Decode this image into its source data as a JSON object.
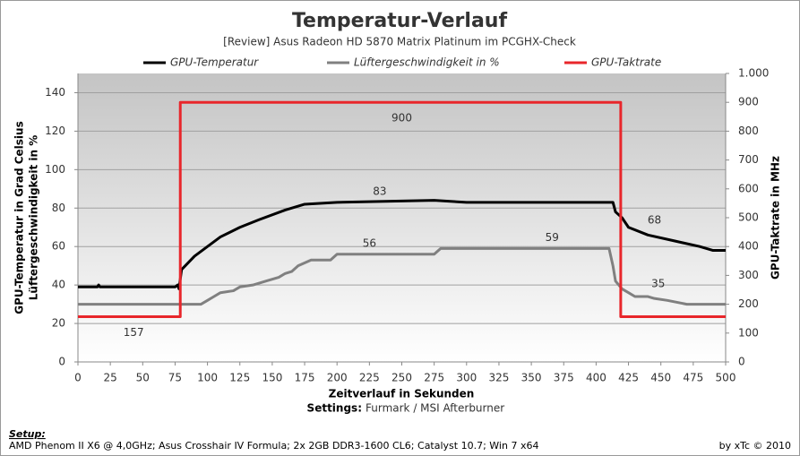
{
  "chart_data": {
    "type": "line",
    "title": "Temperatur-Verlauf",
    "subtitle": "[Review] Asus Radeon HD 5870 Matrix Platinum im PCGHX-Check",
    "xlabel": "Zeitverlauf in Sekunden",
    "settings_label": "Settings:",
    "settings_text": "Furmark / MSI Afterburner",
    "ylabel": [
      "GPU-Temperatur  in Grad Celsius",
      "Lüftergeschwindigkeit  in %"
    ],
    "y2label": "GPU-Taktrate in MHz",
    "xlim": [
      0,
      500
    ],
    "xticks": [
      0,
      25,
      50,
      75,
      100,
      125,
      150,
      175,
      200,
      225,
      250,
      275,
      300,
      325,
      350,
      375,
      400,
      425,
      450,
      475,
      500
    ],
    "ylim": [
      0,
      150
    ],
    "yticks": [
      0,
      20,
      40,
      60,
      80,
      100,
      120,
      140
    ],
    "y2lim": [
      0,
      1000
    ],
    "y2ticks": [
      0,
      100,
      200,
      300,
      400,
      500,
      600,
      700,
      800,
      900,
      {
        "value": 1000,
        "label": "1.000"
      }
    ],
    "grid": true,
    "series": [
      {
        "name": "GPU-Temperatur",
        "color": "#000000",
        "x": [
          0,
          15,
          16,
          17,
          75,
          77,
          78,
          80,
          90,
          100,
          110,
          125,
          140,
          160,
          175,
          200,
          275,
          300,
          410,
          413,
          415,
          420,
          425,
          440,
          460,
          480,
          490,
          500
        ],
        "values": [
          39,
          39,
          40,
          39,
          39,
          40,
          38,
          48,
          55,
          60,
          65,
          70,
          74,
          79,
          82,
          83,
          84,
          83,
          83,
          83,
          78,
          75,
          70,
          66,
          63,
          60,
          58,
          58
        ]
      },
      {
        "name": "Lüftergeschwindigkeit in %",
        "color": "#808080",
        "x": [
          0,
          95,
          100,
          105,
          110,
          120,
          125,
          135,
          145,
          155,
          160,
          165,
          170,
          180,
          195,
          200,
          275,
          280,
          410,
          413,
          415,
          420,
          425,
          430,
          440,
          445,
          455,
          470,
          500
        ],
        "values": [
          30,
          30,
          32,
          34,
          36,
          37,
          39,
          40,
          42,
          44,
          46,
          47,
          50,
          53,
          53,
          56,
          56,
          59,
          59,
          50,
          42,
          38,
          36,
          34,
          34,
          33,
          32,
          30,
          30
        ]
      },
      {
        "name": "GPU-Taktrate",
        "color": "#e8262b",
        "axis": "y2",
        "x": [
          0,
          79,
          79,
          419,
          419,
          500
        ],
        "values": [
          157,
          157,
          900,
          900,
          157,
          157
        ]
      }
    ],
    "annotations": [
      {
        "series": 0,
        "x": 233,
        "value": 83
      },
      {
        "series": 0,
        "x": 445,
        "value": 68
      },
      {
        "series": 1,
        "x": 225,
        "value": 56
      },
      {
        "series": 1,
        "x": 366,
        "value": 59
      },
      {
        "series": 1,
        "x": 448,
        "value": 35
      },
      {
        "series": 2,
        "x": 250,
        "value": 900
      },
      {
        "series": 2,
        "x": 43,
        "value": 157
      }
    ]
  },
  "footer": {
    "setup_label": "Setup:",
    "setup_text": "AMD Phenom II X6 @ 4,0GHz; Asus Crosshair IV Formula; 2x 2GB DDR3-1600 CL6; Catalyst 10.7; Win 7 x64",
    "credit": "by xTc © 2010"
  }
}
